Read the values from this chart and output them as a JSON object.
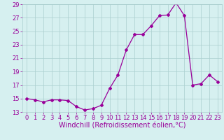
{
  "x": [
    0,
    1,
    2,
    3,
    4,
    5,
    6,
    7,
    8,
    9,
    10,
    11,
    12,
    13,
    14,
    15,
    16,
    17,
    18,
    19,
    20,
    21,
    22,
    23
  ],
  "y": [
    15.0,
    14.8,
    14.5,
    14.8,
    14.8,
    14.7,
    13.8,
    13.3,
    13.5,
    14.0,
    16.5,
    18.5,
    22.2,
    24.5,
    24.5,
    25.8,
    27.3,
    27.4,
    29.2,
    27.3,
    17.0,
    17.2,
    18.5,
    17.5
  ],
  "color": "#990099",
  "bg_color": "#d6f0f0",
  "grid_color": "#aacece",
  "xlabel": "Windchill (Refroidissement éolien,°C)",
  "ylim": [
    13,
    29
  ],
  "xlim": [
    -0.5,
    23.5
  ],
  "yticks": [
    13,
    15,
    17,
    19,
    21,
    23,
    25,
    27,
    29
  ],
  "xticks": [
    0,
    1,
    2,
    3,
    4,
    5,
    6,
    7,
    8,
    9,
    10,
    11,
    12,
    13,
    14,
    15,
    16,
    17,
    18,
    19,
    20,
    21,
    22,
    23
  ],
  "marker": "D",
  "markersize": 2.0,
  "linewidth": 0.9,
  "xlabel_fontsize": 7.0,
  "tick_fontsize": 6.0
}
